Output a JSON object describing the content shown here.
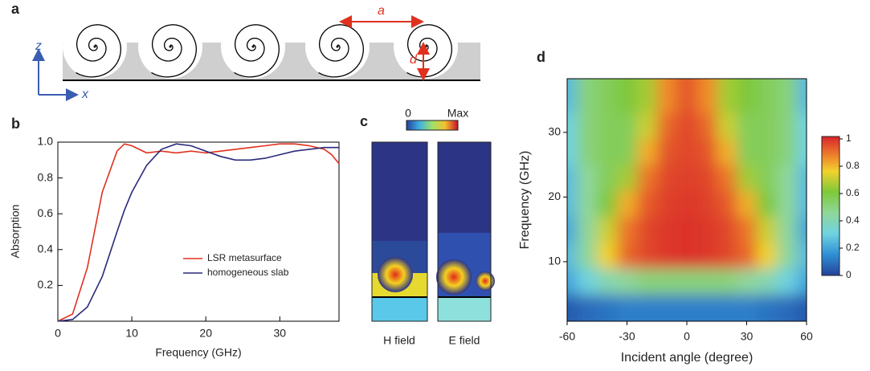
{
  "figure_labels": [
    "a",
    "b",
    "c",
    "d"
  ],
  "panel_a": {
    "axis_labels": {
      "z": "z",
      "x": "x"
    },
    "dimensions": [
      "a",
      "d"
    ]
  },
  "panel_c": {
    "colorbar_labels": [
      "0",
      "Max"
    ],
    "field_labels": [
      "H field",
      "E field"
    ]
  },
  "chart_data": [
    {
      "type": "line",
      "xlabel": "Frequency (GHz)",
      "ylabel": "Absorption",
      "x": [
        0,
        2,
        4,
        6,
        8,
        9,
        10,
        12,
        14,
        16,
        18,
        20,
        22,
        24,
        26,
        28,
        30,
        32,
        34,
        36,
        37,
        38
      ],
      "series": [
        {
          "name": "LSR metasurface",
          "color": "#e0301e",
          "values": [
            0,
            0.04,
            0.3,
            0.72,
            0.95,
            0.99,
            0.98,
            0.94,
            0.95,
            0.94,
            0.95,
            0.94,
            0.95,
            0.96,
            0.97,
            0.98,
            0.99,
            0.99,
            0.98,
            0.96,
            0.93,
            0.88
          ]
        },
        {
          "name": "homogeneous slab",
          "color": "#2a2a7a",
          "values": [
            0,
            0.01,
            0.08,
            0.25,
            0.5,
            0.62,
            0.72,
            0.87,
            0.96,
            0.99,
            0.98,
            0.95,
            0.92,
            0.9,
            0.9,
            0.91,
            0.93,
            0.95,
            0.96,
            0.97,
            0.97,
            0.97
          ]
        }
      ],
      "xlim": [
        0,
        38
      ],
      "ylim": [
        0,
        1
      ],
      "xticks": [
        0,
        10,
        20,
        30
      ],
      "yticks": [
        0.2,
        0.4,
        0.6,
        0.8,
        {
          "value": 1,
          "label": "1.0"
        }
      ]
    },
    {
      "type": "heatmap",
      "xlabel": "Incident angle (degree)",
      "ylabel": "Frequency (GHz)",
      "colormap": "jet",
      "x": [
        -60,
        -50,
        -40,
        -30,
        -20,
        -10,
        0,
        10,
        20,
        30,
        40,
        50,
        60
      ],
      "y": [
        3,
        7,
        11,
        15,
        19,
        23,
        27,
        31,
        35
      ],
      "values": [
        [
          0.05,
          0.08,
          0.1,
          0.12,
          0.12,
          0.12,
          0.12,
          0.12,
          0.12,
          0.12,
          0.1,
          0.08,
          0.05
        ],
        [
          0.2,
          0.3,
          0.4,
          0.45,
          0.5,
          0.5,
          0.5,
          0.5,
          0.5,
          0.45,
          0.4,
          0.3,
          0.2
        ],
        [
          0.25,
          0.45,
          0.75,
          0.9,
          0.95,
          0.97,
          0.98,
          0.97,
          0.95,
          0.9,
          0.75,
          0.45,
          0.25
        ],
        [
          0.2,
          0.45,
          0.7,
          0.88,
          0.95,
          0.97,
          0.98,
          0.97,
          0.95,
          0.88,
          0.7,
          0.45,
          0.2
        ],
        [
          0.25,
          0.45,
          0.6,
          0.8,
          0.92,
          0.96,
          0.97,
          0.96,
          0.92,
          0.8,
          0.6,
          0.45,
          0.25
        ],
        [
          0.25,
          0.45,
          0.55,
          0.65,
          0.88,
          0.95,
          0.96,
          0.95,
          0.88,
          0.65,
          0.55,
          0.45,
          0.25
        ],
        [
          0.3,
          0.5,
          0.55,
          0.55,
          0.8,
          0.93,
          0.95,
          0.93,
          0.8,
          0.55,
          0.55,
          0.5,
          0.3
        ],
        [
          0.3,
          0.5,
          0.55,
          0.55,
          0.7,
          0.9,
          0.95,
          0.9,
          0.7,
          0.55,
          0.55,
          0.5,
          0.3
        ],
        [
          0.25,
          0.5,
          0.55,
          0.6,
          0.65,
          0.85,
          0.93,
          0.85,
          0.65,
          0.6,
          0.55,
          0.5,
          0.25
        ]
      ],
      "xlim": [
        -60,
        60
      ],
      "ylim": [
        0.8,
        38.3
      ],
      "xticks": [
        -60,
        -30,
        0,
        30,
        60
      ],
      "yticks": [
        10,
        20,
        30
      ],
      "colorbar": {
        "lim": [
          0,
          1
        ],
        "ticks": [
          0,
          0.2,
          0.4,
          0.6,
          0.8,
          1
        ]
      }
    }
  ]
}
